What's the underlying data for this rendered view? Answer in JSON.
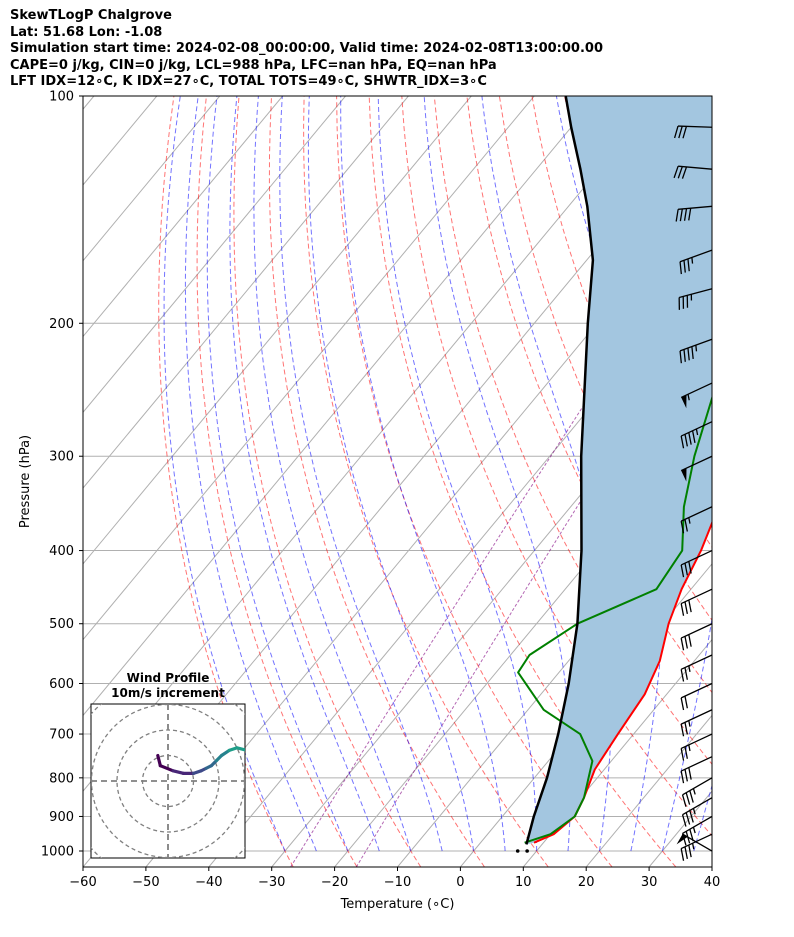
{
  "header": {
    "lines": [
      "SkewTLogP Chalgrove",
      "Lat: 51.68   Lon: -1.08",
      "Simulation start time: 2024-02-08_00:00:00, Valid time: 2024-02-08T13:00:00.00",
      "CAPE=0 j/kg, CIN=0 j/kg, LCL=988 hPa, LFC=nan hPa, EQ=nan hPa",
      "LFT IDX=12∘C, K IDX=27∘C, TOTAL TOTS=49∘C, SHWTR_IDX=3∘C"
    ]
  },
  "chart_data": {
    "type": "line",
    "subtype": "skewT-logP",
    "xlabel": "Temperature (∘C)",
    "ylabel": "Pressure (hPa)",
    "xlim": [
      -60,
      40
    ],
    "ylim": [
      1050,
      100
    ],
    "y_scale": "log",
    "x_ticks": [
      "−60",
      "−50",
      "−40",
      "−30",
      "−20",
      "−10",
      "0",
      "10",
      "20",
      "30",
      "40"
    ],
    "y_ticks": [
      "100",
      "200",
      "300",
      "400",
      "500",
      "600",
      "700",
      "800",
      "900",
      "1000"
    ],
    "grid": true,
    "series": [
      {
        "role": "temperature",
        "color": "#ff0000",
        "points": [
          [
            8.5,
            975
          ],
          [
            10.5,
            950
          ],
          [
            11.5,
            900
          ],
          [
            10.5,
            850
          ],
          [
            8.5,
            780
          ],
          [
            7.5,
            700
          ],
          [
            6.5,
            620
          ],
          [
            4.5,
            560
          ],
          [
            1.0,
            500
          ],
          [
            -1.5,
            450
          ],
          [
            -3.5,
            400
          ],
          [
            -6.5,
            350
          ],
          [
            -9.5,
            300
          ],
          [
            -13.0,
            260
          ],
          [
            -16.5,
            230
          ],
          [
            -19.5,
            200
          ],
          [
            -21.0,
            185
          ],
          [
            -23.5,
            170
          ],
          [
            -29.0,
            155
          ],
          [
            -34.5,
            140
          ],
          [
            -40.0,
            125
          ],
          [
            -44.0,
            112
          ],
          [
            -46.5,
            100
          ]
        ]
      },
      {
        "role": "dewpoint",
        "color": "#008000",
        "points": [
          [
            7.0,
            975
          ],
          [
            10.0,
            950
          ],
          [
            11.5,
            900
          ],
          [
            10.5,
            850
          ],
          [
            7.0,
            760
          ],
          [
            1.5,
            700
          ],
          [
            -7.5,
            650
          ],
          [
            -16.5,
            580
          ],
          [
            -17.0,
            550
          ],
          [
            -13.5,
            500
          ],
          [
            -5.5,
            450
          ],
          [
            -6.5,
            400
          ],
          [
            -12.0,
            350
          ],
          [
            -17.0,
            300
          ],
          [
            -22.0,
            250
          ],
          [
            -26.0,
            205
          ],
          [
            -26.0,
            185
          ],
          [
            -26.0,
            170
          ],
          [
            -29.5,
            160
          ],
          [
            -33.5,
            145
          ],
          [
            -40.0,
            125
          ],
          [
            -48.0,
            100
          ]
        ]
      },
      {
        "role": "parcel",
        "color": "#000000",
        "points": [
          [
            7.5,
            980
          ],
          [
            5.0,
            900
          ],
          [
            2.0,
            800
          ],
          [
            -2.0,
            700
          ],
          [
            -7.0,
            600
          ],
          [
            -13.5,
            500
          ],
          [
            -22.5,
            400
          ],
          [
            -35.0,
            300
          ],
          [
            -51.5,
            200
          ],
          [
            -59.0,
            165
          ],
          [
            -67.0,
            140
          ],
          [
            -73.0,
            125
          ],
          [
            -80.0,
            110
          ],
          [
            -85.0,
            100
          ]
        ]
      }
    ],
    "shading": {
      "color": "#a3c6e0",
      "between": [
        "parcel",
        "temperature"
      ]
    },
    "surface_marks": [
      {
        "role": "temperature",
        "value": 8.5,
        "pressure": 1000
      },
      {
        "role": "dewpoint",
        "value": 7.0,
        "pressure": 1000
      }
    ],
    "wind_barbs": [
      {
        "pressure": 1000,
        "speed_kt": 50,
        "direction": 300
      },
      {
        "pressure": 950,
        "speed_kt": 35,
        "direction": 245
      },
      {
        "pressure": 900,
        "speed_kt": 35,
        "direction": 240
      },
      {
        "pressure": 850,
        "speed_kt": 35,
        "direction": 240
      },
      {
        "pressure": 800,
        "speed_kt": 35,
        "direction": 240
      },
      {
        "pressure": 750,
        "speed_kt": 30,
        "direction": 245
      },
      {
        "pressure": 700,
        "speed_kt": 25,
        "direction": 245
      },
      {
        "pressure": 650,
        "speed_kt": 25,
        "direction": 245
      },
      {
        "pressure": 600,
        "speed_kt": 20,
        "direction": 245
      },
      {
        "pressure": 550,
        "speed_kt": 25,
        "direction": 245
      },
      {
        "pressure": 500,
        "speed_kt": 30,
        "direction": 245
      },
      {
        "pressure": 450,
        "speed_kt": 30,
        "direction": 245
      },
      {
        "pressure": 400,
        "speed_kt": 30,
        "direction": 245
      },
      {
        "pressure": 350,
        "speed_kt": 25,
        "direction": 245
      },
      {
        "pressure": 300,
        "speed_kt": 50,
        "direction": 245
      },
      {
        "pressure": 270,
        "speed_kt": 45,
        "direction": 245
      },
      {
        "pressure": 240,
        "speed_kt": 55,
        "direction": 245
      },
      {
        "pressure": 210,
        "speed_kt": 45,
        "direction": 250
      },
      {
        "pressure": 180,
        "speed_kt": 35,
        "direction": 255
      },
      {
        "pressure": 160,
        "speed_kt": 35,
        "direction": 250
      },
      {
        "pressure": 140,
        "speed_kt": 40,
        "direction": 265
      },
      {
        "pressure": 125,
        "speed_kt": 30,
        "direction": 275
      },
      {
        "pressure": 110,
        "speed_kt": 30,
        "direction": 272
      }
    ],
    "inset": {
      "title": "Wind Profile",
      "subtitle": "10m/s increment",
      "colormap": "viridis",
      "points": [
        [
          -4,
          -10
        ],
        [
          -3,
          -6
        ],
        [
          2,
          -4
        ],
        [
          6,
          -3
        ],
        [
          10,
          -3
        ],
        [
          13,
          -4
        ],
        [
          15,
          -5
        ],
        [
          17,
          -6
        ],
        [
          19,
          -8
        ],
        [
          21,
          -10
        ],
        [
          24,
          -12
        ],
        [
          27,
          -13
        ],
        [
          31,
          -12
        ],
        [
          33,
          -14
        ],
        [
          35,
          -12
        ],
        [
          35,
          -10
        ],
        [
          36,
          -7
        ],
        [
          36,
          -3
        ],
        [
          35,
          2
        ],
        [
          33,
          5
        ]
      ]
    }
  }
}
